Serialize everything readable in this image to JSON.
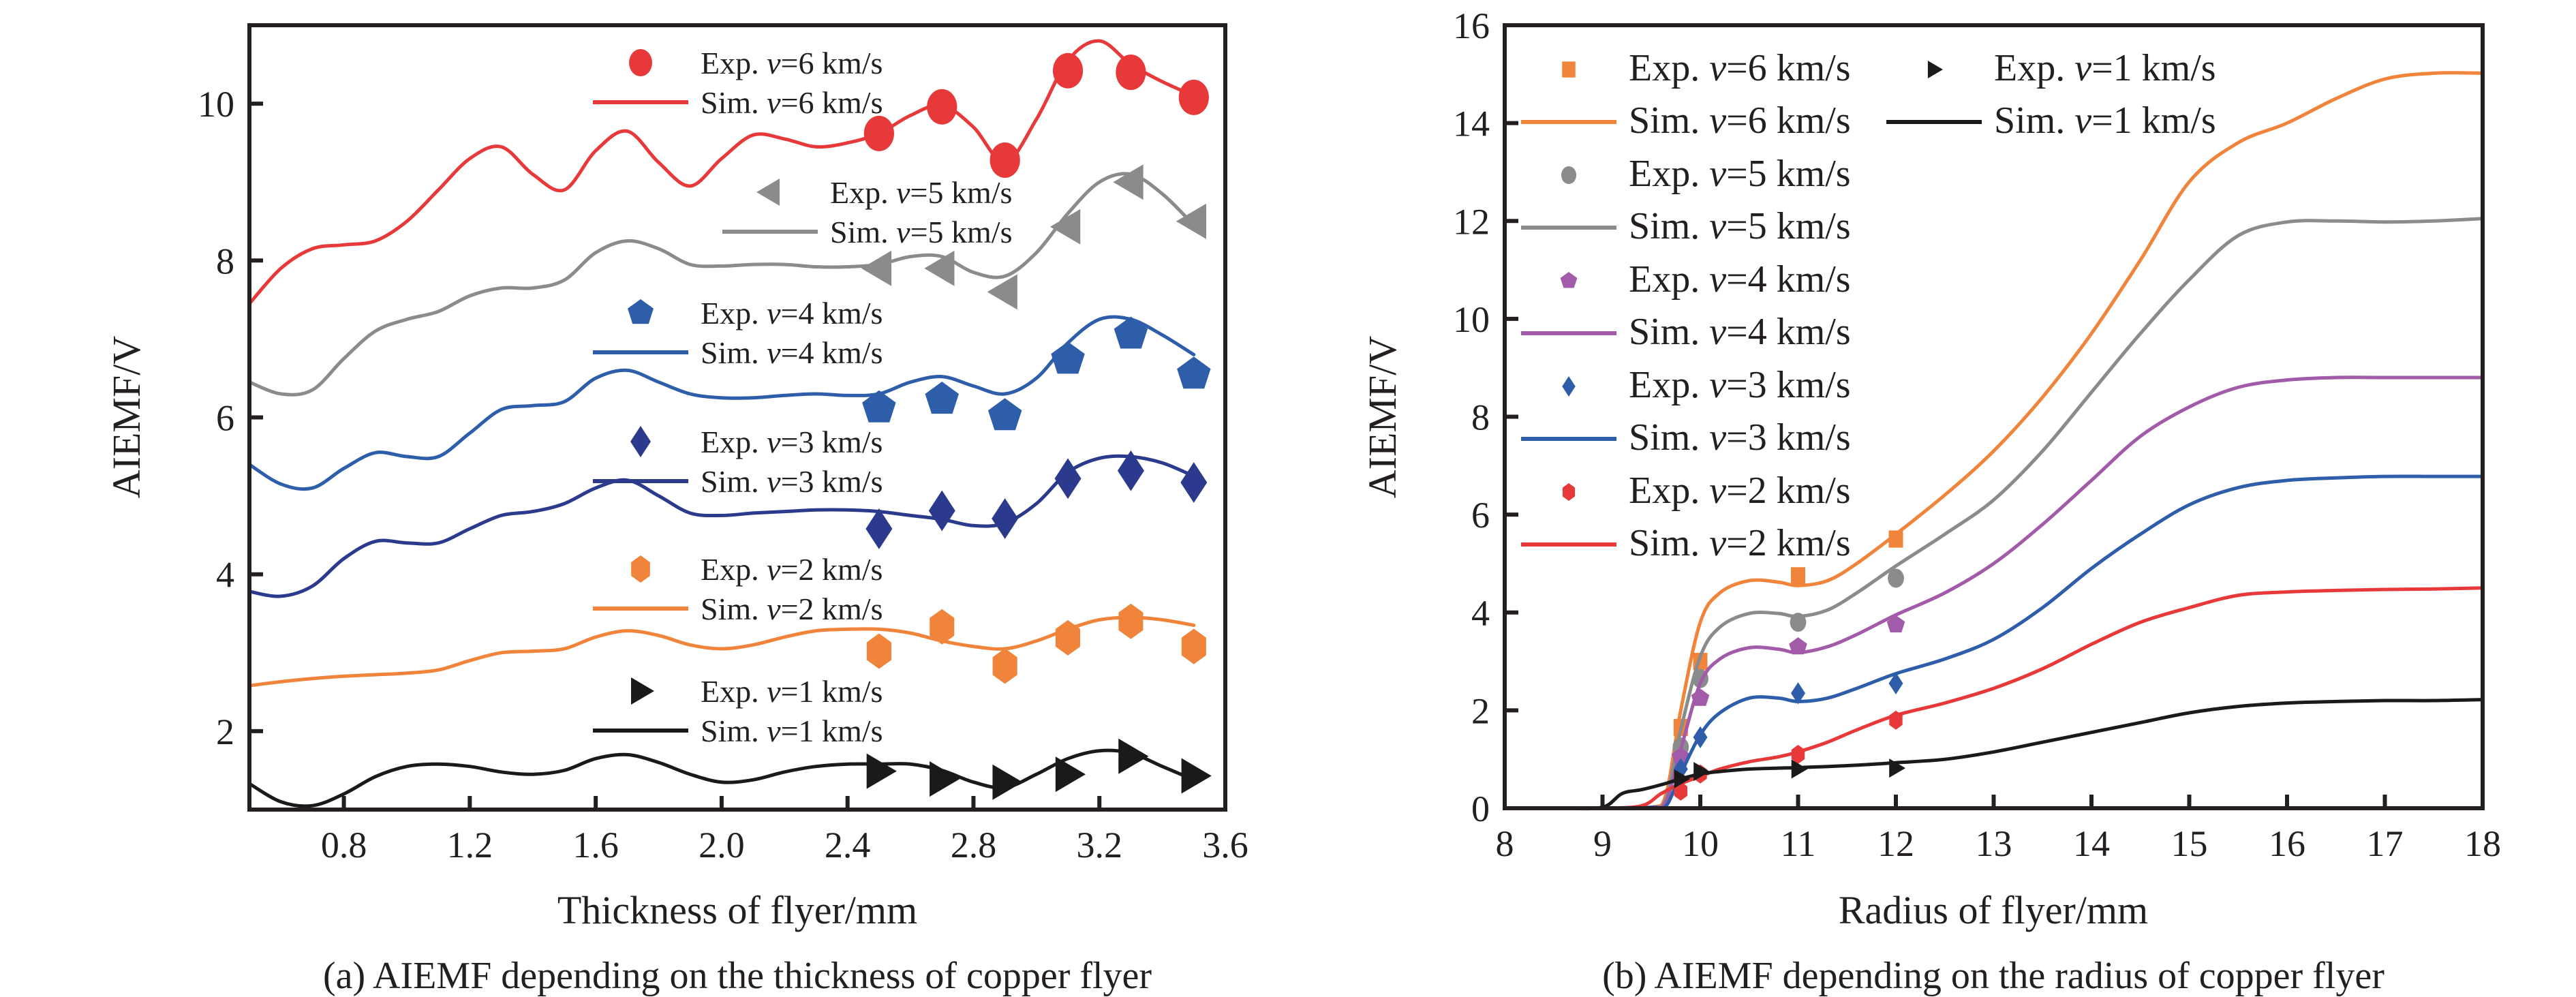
{
  "chart_data": [
    {
      "id": "a",
      "type": "line",
      "title": "",
      "caption": "(a) AIEMF depending on the thickness of copper flyer",
      "xlabel": "Thickness of flyer/mm",
      "ylabel": "AIEMF/V",
      "xlim": [
        0.5,
        3.6
      ],
      "ylim": [
        1,
        11
      ],
      "xticks": [
        0.8,
        1.2,
        1.6,
        2.0,
        2.4,
        2.8,
        3.2,
        3.6
      ],
      "xtick_labels": [
        "0.8",
        "1.2",
        "1.6",
        "2.0",
        "2.4",
        "2.8",
        "3.2",
        "3.6"
      ],
      "yticks": [
        2,
        4,
        6,
        8,
        10
      ],
      "ytick_labels": [
        "2",
        "4",
        "6",
        "8",
        "10"
      ],
      "grid": false,
      "legend_placement": "inline-per-series",
      "series": [
        {
          "name": "v=6 km/s",
          "color": "#e8393a",
          "marker": "circle",
          "exp_label": "Exp. v=6 km/s",
          "sim_label": "Sim. v=6 km/s",
          "exp_x": [
            2.5,
            2.7,
            2.9,
            3.1,
            3.3,
            3.5
          ],
          "exp_y": [
            9.62,
            9.96,
            9.28,
            10.42,
            10.4,
            10.08
          ],
          "sim_x": [
            0.5,
            0.6,
            0.7,
            0.8,
            0.9,
            1.0,
            1.1,
            1.2,
            1.3,
            1.4,
            1.5,
            1.6,
            1.7,
            1.8,
            1.9,
            2.0,
            2.1,
            2.2,
            2.3,
            2.4,
            2.5,
            2.6,
            2.7,
            2.8,
            2.9,
            3.0,
            3.1,
            3.2,
            3.3,
            3.4,
            3.5
          ],
          "sim_y": [
            7.45,
            7.9,
            8.15,
            8.2,
            8.25,
            8.5,
            8.9,
            9.3,
            9.45,
            9.1,
            8.9,
            9.4,
            9.65,
            9.25,
            8.95,
            9.3,
            9.6,
            9.55,
            9.45,
            9.5,
            9.62,
            9.85,
            9.98,
            9.7,
            9.25,
            9.8,
            10.55,
            10.8,
            10.5,
            10.28,
            10.1
          ]
        },
        {
          "name": "v=5 km/s",
          "color": "#8a8b8d",
          "marker": "triangle-left",
          "exp_label": "Exp. v=5 km/s",
          "sim_label": "Sim. v=5 km/s",
          "exp_x": [
            2.5,
            2.7,
            2.9,
            3.1,
            3.3,
            3.5
          ],
          "exp_y": [
            7.9,
            7.9,
            7.6,
            8.43,
            9.0,
            8.5
          ],
          "sim_x": [
            0.5,
            0.6,
            0.7,
            0.8,
            0.9,
            1.0,
            1.1,
            1.2,
            1.3,
            1.4,
            1.5,
            1.6,
            1.7,
            1.8,
            1.9,
            2.0,
            2.1,
            2.2,
            2.3,
            2.4,
            2.5,
            2.6,
            2.7,
            2.8,
            2.9,
            3.0,
            3.1,
            3.2,
            3.3,
            3.4,
            3.5
          ],
          "sim_y": [
            6.45,
            6.3,
            6.35,
            6.75,
            7.1,
            7.25,
            7.35,
            7.55,
            7.65,
            7.65,
            7.75,
            8.1,
            8.25,
            8.15,
            7.95,
            7.93,
            7.95,
            7.95,
            7.92,
            7.92,
            7.95,
            8.05,
            8.05,
            7.85,
            7.8,
            8.1,
            8.6,
            9.0,
            9.1,
            8.85,
            8.45
          ]
        },
        {
          "name": "v=4 km/s",
          "color": "#2e5ea9",
          "marker": "pentagon",
          "exp_label": "Exp. v=4 km/s",
          "sim_label": "Sim. v=4 km/s",
          "exp_x": [
            2.5,
            2.7,
            2.9,
            3.1,
            3.3,
            3.5
          ],
          "exp_y": [
            6.12,
            6.23,
            6.02,
            6.74,
            7.06,
            6.55
          ],
          "sim_x": [
            0.5,
            0.6,
            0.7,
            0.8,
            0.9,
            1.0,
            1.1,
            1.2,
            1.3,
            1.4,
            1.5,
            1.6,
            1.7,
            1.8,
            1.9,
            2.0,
            2.1,
            2.2,
            2.3,
            2.4,
            2.5,
            2.6,
            2.7,
            2.8,
            2.9,
            3.0,
            3.1,
            3.2,
            3.3,
            3.4,
            3.5
          ],
          "sim_y": [
            5.4,
            5.15,
            5.1,
            5.35,
            5.55,
            5.5,
            5.5,
            5.8,
            6.1,
            6.15,
            6.2,
            6.5,
            6.6,
            6.45,
            6.3,
            6.25,
            6.25,
            6.28,
            6.3,
            6.28,
            6.3,
            6.45,
            6.52,
            6.4,
            6.3,
            6.5,
            6.95,
            7.25,
            7.25,
            7.05,
            6.8
          ]
        },
        {
          "name": "v=3 km/s",
          "color": "#2b3a8c",
          "marker": "diamond",
          "exp_label": "Exp. v=3 km/s",
          "sim_label": "Sim. v=3 km/s",
          "exp_x": [
            2.5,
            2.7,
            2.9,
            3.1,
            3.3,
            3.5
          ],
          "exp_y": [
            4.58,
            4.81,
            4.71,
            5.22,
            5.32,
            5.17
          ],
          "sim_x": [
            0.5,
            0.6,
            0.7,
            0.8,
            0.9,
            1.0,
            1.1,
            1.2,
            1.3,
            1.4,
            1.5,
            1.6,
            1.7,
            1.8,
            1.9,
            2.0,
            2.1,
            2.2,
            2.3,
            2.4,
            2.5,
            2.6,
            2.7,
            2.8,
            2.9,
            3.0,
            3.1,
            3.2,
            3.3,
            3.4,
            3.5
          ],
          "sim_y": [
            3.78,
            3.72,
            3.85,
            4.2,
            4.42,
            4.4,
            4.4,
            4.58,
            4.75,
            4.8,
            4.9,
            5.1,
            5.2,
            5.0,
            4.78,
            4.75,
            4.78,
            4.8,
            4.82,
            4.82,
            4.8,
            4.75,
            4.7,
            4.62,
            4.65,
            4.9,
            5.3,
            5.48,
            5.5,
            5.42,
            5.25
          ]
        },
        {
          "name": "v=2 km/s",
          "color": "#f0843a",
          "marker": "hexagon",
          "exp_label": "Exp. v=2 km/s",
          "sim_label": "Sim. v=2 km/s",
          "exp_x": [
            2.5,
            2.7,
            2.9,
            3.1,
            3.3,
            3.5
          ],
          "exp_y": [
            3.02,
            3.33,
            2.83,
            3.19,
            3.4,
            3.08
          ],
          "sim_x": [
            0.5,
            0.6,
            0.7,
            0.8,
            0.9,
            1.0,
            1.1,
            1.2,
            1.3,
            1.4,
            1.5,
            1.6,
            1.7,
            1.8,
            1.9,
            2.0,
            2.1,
            2.2,
            2.3,
            2.4,
            2.5,
            2.6,
            2.7,
            2.8,
            2.9,
            3.0,
            3.1,
            3.2,
            3.3,
            3.4,
            3.5
          ],
          "sim_y": [
            2.58,
            2.63,
            2.67,
            2.7,
            2.72,
            2.74,
            2.78,
            2.9,
            3.0,
            3.02,
            3.05,
            3.2,
            3.28,
            3.22,
            3.1,
            3.05,
            3.1,
            3.2,
            3.28,
            3.3,
            3.3,
            3.25,
            3.15,
            3.08,
            3.05,
            3.15,
            3.3,
            3.42,
            3.45,
            3.42,
            3.35
          ]
        },
        {
          "name": "v=1 km/s",
          "color": "#1a1a1a",
          "marker": "triangle-right",
          "exp_label": "Exp. v=1 km/s",
          "sim_label": "Sim. v=1 km/s",
          "exp_x": [
            2.5,
            2.7,
            2.9,
            3.1,
            3.3,
            3.5
          ],
          "exp_y": [
            1.49,
            1.39,
            1.35,
            1.45,
            1.68,
            1.43
          ],
          "sim_x": [
            0.5,
            0.6,
            0.7,
            0.8,
            0.9,
            1.0,
            1.1,
            1.2,
            1.3,
            1.4,
            1.5,
            1.6,
            1.7,
            1.8,
            1.9,
            2.0,
            2.1,
            2.2,
            2.3,
            2.4,
            2.5,
            2.6,
            2.7,
            2.8,
            2.9,
            3.0,
            3.1,
            3.2,
            3.3,
            3.4,
            3.5
          ],
          "sim_y": [
            1.33,
            1.1,
            1.05,
            1.2,
            1.42,
            1.55,
            1.58,
            1.55,
            1.48,
            1.45,
            1.5,
            1.65,
            1.7,
            1.6,
            1.45,
            1.35,
            1.38,
            1.48,
            1.55,
            1.58,
            1.58,
            1.58,
            1.5,
            1.35,
            1.28,
            1.45,
            1.65,
            1.75,
            1.72,
            1.55,
            1.38
          ]
        }
      ]
    },
    {
      "id": "b",
      "type": "line",
      "title": "",
      "caption": "(b) AIEMF depending on the radius of copper flyer",
      "xlabel": "Radius of flyer/mm",
      "ylabel": "AIEMF/V",
      "xlim": [
        8,
        18
      ],
      "ylim": [
        0,
        16
      ],
      "xticks": [
        8,
        9,
        10,
        11,
        12,
        13,
        14,
        15,
        16,
        17,
        18
      ],
      "xtick_labels": [
        "8",
        "9",
        "10",
        "11",
        "12",
        "13",
        "14",
        "15",
        "16",
        "17",
        "18"
      ],
      "yticks": [
        0,
        2,
        4,
        6,
        8,
        10,
        12,
        14,
        16
      ],
      "ytick_labels": [
        "0",
        "2",
        "4",
        "6",
        "8",
        "10",
        "12",
        "14",
        "16"
      ],
      "grid": false,
      "legend_placement": "top-left",
      "series": [
        {
          "name": "v=6 km/s",
          "color": "#f0843a",
          "marker": "square",
          "exp_label": "Exp. v=6 km/s",
          "sim_label": "Sim. v=6 km/s",
          "exp_x": [
            9.8,
            10,
            11,
            12
          ],
          "exp_y": [
            1.65,
            3.0,
            4.75,
            5.5
          ],
          "sim_x": [
            8.6,
            9.0,
            9.5,
            9.65,
            9.8,
            10.0,
            10.2,
            10.5,
            10.8,
            11.0,
            11.3,
            11.6,
            12.0,
            12.5,
            13.0,
            13.5,
            14.0,
            14.5,
            15.0,
            15.5,
            16.0,
            16.5,
            17.0,
            17.5,
            18.0
          ],
          "sim_y": [
            0,
            0,
            0.02,
            0.3,
            2.0,
            3.8,
            4.4,
            4.65,
            4.62,
            4.55,
            4.65,
            5.0,
            5.6,
            6.4,
            7.3,
            8.4,
            9.7,
            11.2,
            12.8,
            13.6,
            14.0,
            14.5,
            14.9,
            15.02,
            15.02
          ]
        },
        {
          "name": "v=5 km/s",
          "color": "#8a8b8d",
          "marker": "circle",
          "exp_label": "Exp. v=5 km/s",
          "sim_label": "Sim. v=5 km/s",
          "exp_x": [
            9.8,
            10,
            11,
            12
          ],
          "exp_y": [
            1.25,
            2.65,
            3.8,
            4.7
          ],
          "sim_x": [
            8.6,
            9.0,
            9.5,
            9.65,
            9.8,
            10.0,
            10.2,
            10.5,
            10.8,
            11.0,
            11.3,
            11.6,
            12.0,
            12.5,
            13.0,
            13.5,
            14.0,
            14.5,
            15.0,
            15.5,
            16.0,
            16.5,
            17.0,
            17.5,
            18.0
          ],
          "sim_y": [
            0,
            0,
            0.02,
            0.2,
            1.6,
            3.1,
            3.7,
            3.98,
            3.98,
            3.92,
            4.05,
            4.4,
            4.95,
            5.6,
            6.3,
            7.3,
            8.5,
            9.7,
            10.8,
            11.7,
            11.98,
            12.0,
            11.98,
            12.0,
            12.05
          ]
        },
        {
          "name": "v=4 km/s",
          "color": "#a25ba8",
          "marker": "pentagon",
          "exp_label": "Exp. v=4 km/s",
          "sim_label": "Sim. v=4 km/s",
          "exp_x": [
            9.8,
            10,
            11,
            12
          ],
          "exp_y": [
            1.05,
            2.25,
            3.3,
            3.75
          ],
          "sim_x": [
            8.6,
            9.0,
            9.5,
            9.65,
            9.8,
            10.0,
            10.2,
            10.5,
            10.8,
            11.0,
            11.3,
            11.6,
            12.0,
            12.5,
            13.0,
            13.5,
            14.0,
            14.5,
            15.0,
            15.5,
            16.0,
            16.5,
            17.0,
            17.5,
            18.0
          ],
          "sim_y": [
            0,
            0,
            0.02,
            0.15,
            1.2,
            2.55,
            3.05,
            3.28,
            3.25,
            3.18,
            3.3,
            3.55,
            3.95,
            4.4,
            5.0,
            5.8,
            6.7,
            7.6,
            8.2,
            8.6,
            8.75,
            8.8,
            8.8,
            8.8,
            8.8
          ]
        },
        {
          "name": "v=3 km/s",
          "color": "#2e5ea9",
          "marker": "diamond",
          "exp_label": "Exp. v=3 km/s",
          "sim_label": "Sim. v=3 km/s",
          "exp_x": [
            9.8,
            10,
            11,
            12
          ],
          "exp_y": [
            0.8,
            1.45,
            2.35,
            2.55
          ],
          "sim_x": [
            8.6,
            9.0,
            9.5,
            9.65,
            9.8,
            10.0,
            10.2,
            10.5,
            10.8,
            11.0,
            11.3,
            11.6,
            12.0,
            12.5,
            13.0,
            13.5,
            14.0,
            14.5,
            15.0,
            15.5,
            16.0,
            16.5,
            17.0,
            17.5,
            18.0
          ],
          "sim_y": [
            0,
            0,
            0.02,
            0.05,
            0.7,
            1.5,
            1.95,
            2.25,
            2.25,
            2.18,
            2.25,
            2.45,
            2.75,
            3.05,
            3.45,
            4.1,
            4.9,
            5.6,
            6.2,
            6.55,
            6.7,
            6.75,
            6.78,
            6.78,
            6.78
          ]
        },
        {
          "name": "v=2 km/s",
          "color": "#e8393a",
          "marker": "hexagon",
          "exp_label": "Exp. v=2 km/s",
          "sim_label": "Sim. v=2 km/s",
          "exp_x": [
            9.8,
            10,
            11,
            12
          ],
          "exp_y": [
            0.35,
            0.7,
            1.1,
            1.8
          ],
          "sim_x": [
            8.6,
            9.0,
            9.4,
            9.6,
            9.8,
            10.0,
            10.2,
            10.5,
            10.8,
            11.0,
            11.3,
            11.6,
            12.0,
            12.5,
            13.0,
            13.5,
            14.0,
            14.5,
            15.0,
            15.5,
            16.0,
            16.5,
            17.0,
            17.5,
            18.0
          ],
          "sim_y": [
            0,
            0,
            0.05,
            0.3,
            0.5,
            0.65,
            0.8,
            0.95,
            1.05,
            1.15,
            1.35,
            1.6,
            1.9,
            2.15,
            2.45,
            2.85,
            3.35,
            3.8,
            4.1,
            4.35,
            4.42,
            4.45,
            4.47,
            4.48,
            4.5
          ]
        },
        {
          "name": "v=1 km/s",
          "color": "#1a1a1a",
          "marker": "triangle-right",
          "exp_label": "Exp. v=1 km/s",
          "sim_label": "Sim. v=1 km/s",
          "exp_x": [
            9.8,
            10,
            11,
            12
          ],
          "exp_y": [
            0.6,
            0.75,
            0.8,
            0.82
          ],
          "sim_x": [
            8.6,
            9.0,
            9.2,
            9.4,
            9.6,
            9.8,
            10.0,
            10.2,
            10.5,
            10.8,
            11.0,
            11.5,
            12.0,
            12.5,
            13.0,
            13.5,
            14.0,
            14.5,
            15.0,
            15.5,
            16.0,
            16.5,
            17.0,
            17.5,
            18.0
          ],
          "sim_y": [
            0,
            0.02,
            0.3,
            0.38,
            0.48,
            0.6,
            0.7,
            0.75,
            0.8,
            0.82,
            0.83,
            0.87,
            0.93,
            1.0,
            1.15,
            1.35,
            1.55,
            1.75,
            1.95,
            2.08,
            2.15,
            2.18,
            2.2,
            2.2,
            2.22
          ]
        }
      ]
    }
  ]
}
